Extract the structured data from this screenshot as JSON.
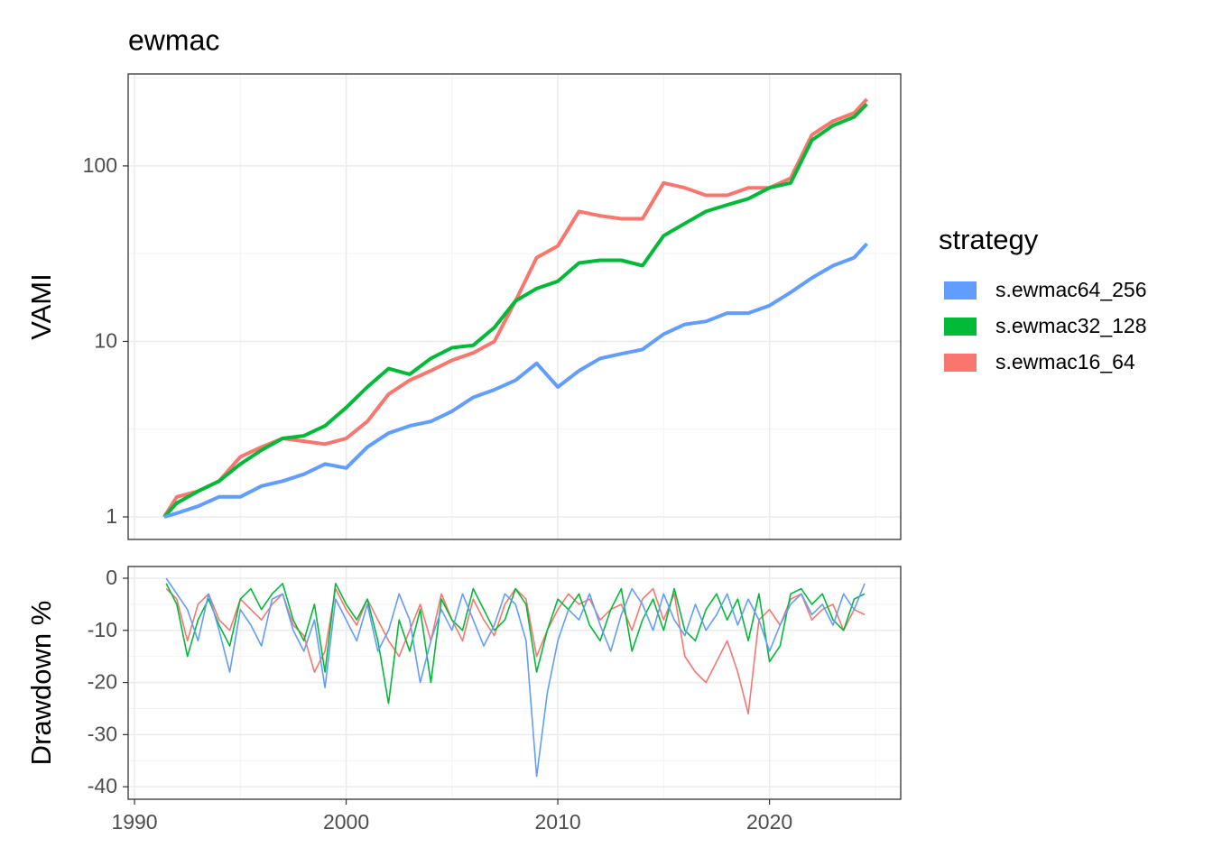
{
  "chart_data": [
    {
      "type": "line",
      "title": "ewmac",
      "ylabel": "VAMI",
      "log_y": true,
      "grid": true,
      "legend_title": "strategy",
      "legend_position": "right",
      "xlim": [
        1989.7,
        2026.2
      ],
      "xticks": [
        1990,
        2000,
        2010,
        2020
      ],
      "ylim": [
        0.744,
        334
      ],
      "yticks": [
        1,
        10,
        100
      ],
      "x": [
        1991.4,
        1992,
        1993,
        1994,
        1995,
        1996,
        1997,
        1998,
        1999,
        2000,
        2001,
        2002,
        2003,
        2004,
        2005,
        2006,
        2007,
        2008,
        2009,
        2010,
        2011,
        2012,
        2013,
        2014,
        2015,
        2016,
        2017,
        2018,
        2019,
        2020,
        2021,
        2022,
        2023,
        2024,
        2024.6
      ],
      "series": [
        {
          "name": "s.ewmac64_256",
          "color": "#619CFF",
          "values": [
            1,
            1.05,
            1.15,
            1.3,
            1.3,
            1.5,
            1.6,
            1.75,
            2.0,
            1.9,
            2.5,
            3.0,
            3.3,
            3.5,
            4.0,
            4.8,
            5.3,
            6.0,
            7.5,
            5.5,
            6.8,
            8.0,
            8.5,
            9.0,
            11,
            12.5,
            13,
            14.5,
            14.5,
            16,
            19,
            23,
            27,
            30,
            36
          ]
        },
        {
          "name": "s.ewmac32_128",
          "color": "#00BA38",
          "values": [
            1,
            1.2,
            1.4,
            1.6,
            2.0,
            2.4,
            2.8,
            2.9,
            3.3,
            4.2,
            5.5,
            7.0,
            6.5,
            8,
            9.2,
            9.5,
            12,
            17,
            20,
            22,
            28,
            29,
            29,
            27,
            40,
            47,
            55,
            60,
            65,
            75,
            80,
            140,
            170,
            190,
            225
          ]
        },
        {
          "name": "s.ewmac16_64",
          "color": "#F8766D",
          "values": [
            1,
            1.3,
            1.4,
            1.6,
            2.2,
            2.5,
            2.8,
            2.7,
            2.6,
            2.8,
            3.5,
            5.0,
            6.0,
            6.8,
            7.8,
            8.6,
            10,
            17,
            30,
            35,
            55,
            52,
            50,
            50,
            80,
            75,
            68,
            68,
            75,
            75,
            85,
            150,
            180,
            200,
            240
          ]
        }
      ]
    },
    {
      "type": "line",
      "ylabel": "Drawdown %",
      "grid": true,
      "xlim": [
        1989.7,
        2026.2
      ],
      "xticks": [
        1990,
        2000,
        2010,
        2020
      ],
      "ylim": [
        -42.4,
        2.25
      ],
      "yticks": [
        0,
        -10,
        -20,
        -30,
        -40
      ],
      "x": [
        1991.5,
        1992,
        1992.5,
        1993,
        1993.5,
        1994,
        1994.5,
        1995,
        1995.5,
        1996,
        1996.5,
        1997,
        1997.5,
        1998,
        1998.5,
        1999,
        1999.5,
        2000,
        2000.5,
        2001,
        2001.5,
        2002,
        2002.5,
        2003,
        2003.5,
        2004,
        2004.5,
        2005,
        2005.5,
        2006,
        2006.5,
        2007,
        2007.5,
        2008,
        2008.5,
        2009,
        2009.5,
        2010,
        2010.5,
        2011,
        2011.5,
        2012,
        2012.5,
        2013,
        2013.5,
        2014,
        2014.5,
        2015,
        2015.5,
        2016,
        2016.5,
        2017,
        2017.5,
        2018,
        2018.5,
        2019,
        2019.5,
        2020,
        2020.5,
        2021,
        2021.5,
        2022,
        2022.5,
        2023,
        2023.5,
        2024,
        2024.5
      ],
      "series": [
        {
          "color": "#619CFF",
          "values": [
            0,
            -3,
            -6,
            -12,
            -3,
            -10,
            -18,
            -6,
            -9,
            -13,
            -4,
            -3,
            -10,
            -14,
            -8,
            -21,
            -4,
            -8,
            -12,
            -5,
            -14,
            -10,
            -3,
            -8,
            -20,
            -12,
            -6,
            -10,
            -3,
            -8,
            -13,
            -9,
            -3,
            -5,
            -12,
            -38,
            -22,
            -12,
            -6,
            -8,
            -3,
            -9,
            -14,
            -7,
            -2,
            -5,
            -10,
            -3,
            -8,
            -11,
            -5,
            -10,
            -7,
            -3,
            -9,
            -4,
            -8,
            -14,
            -9,
            -5,
            -3,
            -7,
            -5,
            -9,
            -3,
            -6,
            -1
          ]
        },
        {
          "color": "#00BA38",
          "values": [
            -1,
            -5,
            -15,
            -8,
            -4,
            -9,
            -13,
            -4,
            -2,
            -6,
            -3,
            -1,
            -8,
            -12,
            -5,
            -18,
            -1,
            -5,
            -8,
            -4,
            -12,
            -24,
            -8,
            -14,
            -6,
            -20,
            -4,
            -8,
            -10,
            -2,
            -6,
            -10,
            -8,
            -2,
            -5,
            -18,
            -10,
            -4,
            -6,
            -3,
            -9,
            -12,
            -6,
            -2,
            -14,
            -8,
            -4,
            -10,
            -2,
            -10,
            -12,
            -6,
            -3,
            -8,
            -4,
            -12,
            -3,
            -16,
            -13,
            -3,
            -2,
            -5,
            -3,
            -8,
            -10,
            -4,
            -3
          ]
        },
        {
          "color": "#F8766D",
          "values": [
            -2,
            -4,
            -12,
            -5,
            -3,
            -8,
            -10,
            -4,
            -6,
            -8,
            -5,
            -3,
            -9,
            -11,
            -18,
            -14,
            -2,
            -6,
            -9,
            -4,
            -8,
            -12,
            -15,
            -10,
            -5,
            -12,
            -3,
            -8,
            -12,
            -4,
            -8,
            -11,
            -5,
            -2,
            -4,
            -15,
            -10,
            -6,
            -3,
            -5,
            -4,
            -8,
            -6,
            -5,
            -10,
            -4,
            -2,
            -8,
            -3,
            -15,
            -18,
            -20,
            -16,
            -12,
            -18,
            -26,
            -8,
            -6,
            -9,
            -4,
            -3,
            -8,
            -6,
            -5,
            -10,
            -6,
            -7
          ]
        }
      ]
    }
  ]
}
